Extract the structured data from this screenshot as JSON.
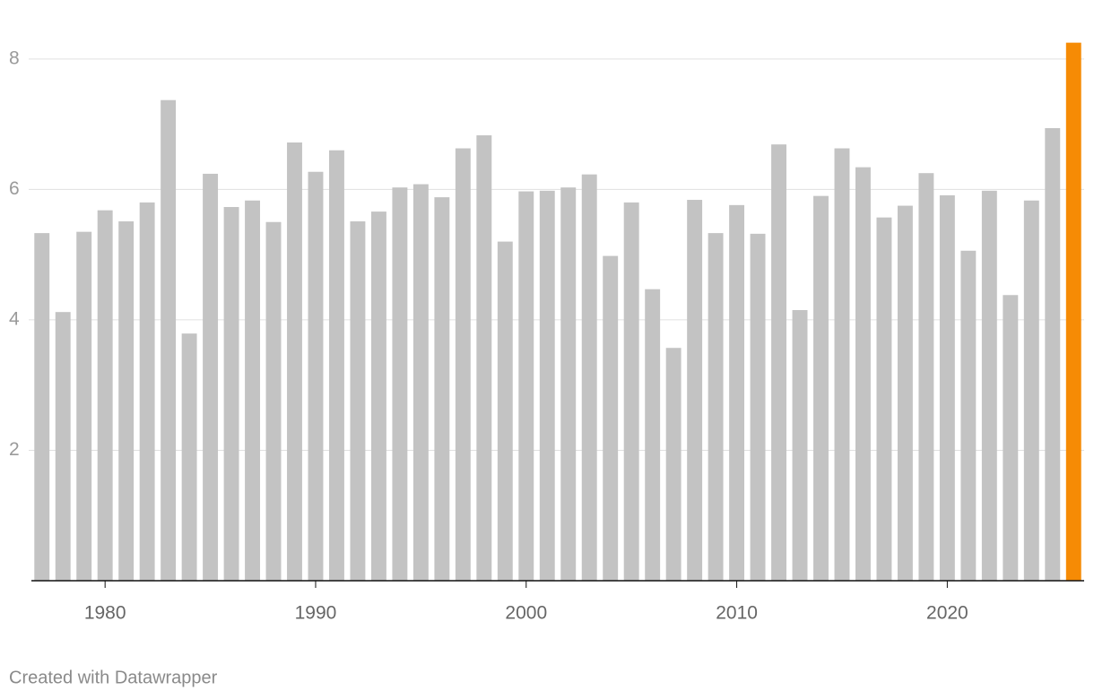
{
  "chart_data": {
    "type": "bar",
    "x": [
      1977,
      1978,
      1979,
      1980,
      1981,
      1982,
      1983,
      1984,
      1985,
      1986,
      1987,
      1988,
      1989,
      1990,
      1991,
      1992,
      1993,
      1994,
      1995,
      1996,
      1997,
      1998,
      1999,
      2000,
      2001,
      2002,
      2003,
      2004,
      2005,
      2006,
      2007,
      2008,
      2009,
      2010,
      2011,
      2012,
      2013,
      2014,
      2015,
      2016,
      2017,
      2018,
      2019,
      2020,
      2021,
      2022,
      2023,
      2024,
      2025,
      2026
    ],
    "values": [
      5.33,
      4.12,
      5.35,
      5.68,
      5.51,
      5.8,
      7.37,
      3.79,
      6.24,
      5.73,
      5.83,
      5.5,
      6.72,
      6.27,
      6.6,
      5.51,
      5.66,
      6.03,
      6.08,
      5.88,
      6.63,
      6.83,
      5.2,
      5.97,
      5.98,
      6.03,
      6.23,
      4.98,
      5.8,
      4.47,
      3.57,
      5.84,
      5.33,
      5.76,
      5.32,
      6.69,
      4.15,
      5.9,
      6.63,
      6.34,
      5.57,
      5.75,
      6.25,
      5.91,
      5.06,
      5.98,
      4.38,
      5.83,
      6.94,
      8.25
    ],
    "color": "#c3c3c3",
    "highlight": {
      "x": 2026,
      "color": "#f68b05"
    },
    "xlim": [
      1976.5,
      2026.5
    ],
    "xticks": [
      1980,
      1990,
      2000,
      2010,
      2020
    ],
    "ylim": [
      0,
      8.3
    ],
    "yticks": [
      2,
      4,
      6,
      8
    ],
    "grid": true,
    "credit": "Created with Datawrapper"
  }
}
